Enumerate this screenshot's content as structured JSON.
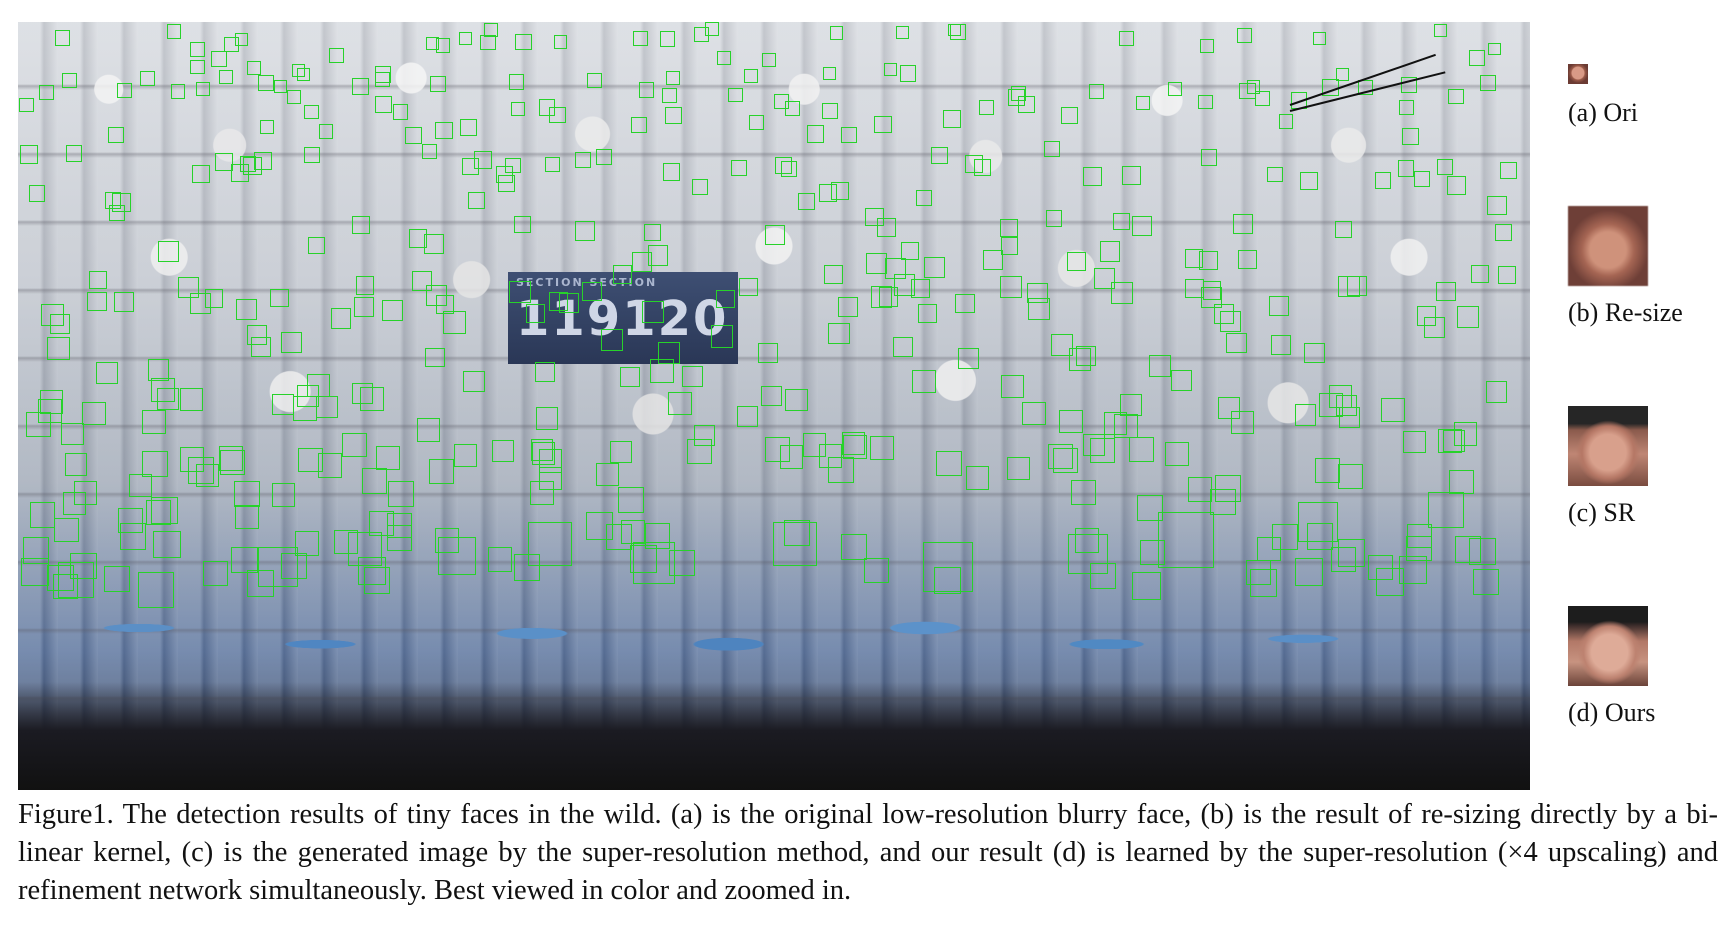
{
  "figure": {
    "photo_sign": {
      "top_text": "SECTION SECTION",
      "number_text": "119120"
    },
    "comparison": [
      {
        "label": "(a) Ori"
      },
      {
        "label": "(b) Re-size"
      },
      {
        "label": "(c) SR"
      },
      {
        "label": "(d) Ours"
      }
    ],
    "box_color": "#27d22a",
    "caption": "Figure1.  The detection results of tiny faces in the wild.  (a) is the original low-resolution blurry face, (b) is the result of re-sizing directly by a bi-linear kernel, (c) is the generated image by the super-resolution method, and our result (d) is learned by the super-resolution (×4 upscaling) and refinement network simultaneously. Best viewed in color and zoomed in."
  }
}
